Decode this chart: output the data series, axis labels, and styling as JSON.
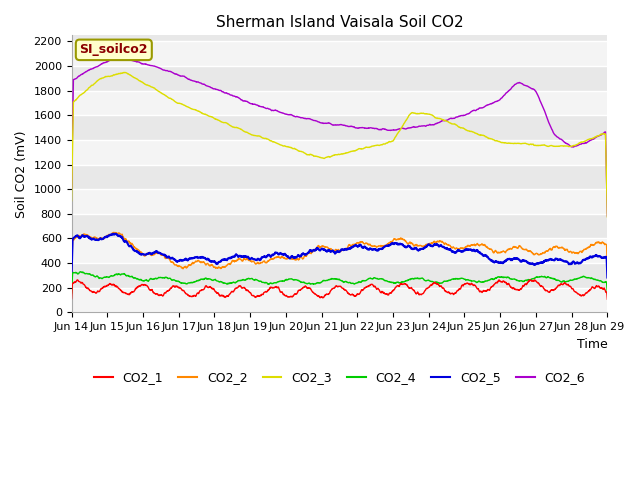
{
  "title": "Sherman Island Vaisala Soil CO2",
  "ylabel": "Soil CO2 (mV)",
  "xlabel": "Time",
  "annotation": "SI_soilco2",
  "xlim": [
    0,
    15
  ],
  "ylim": [
    0,
    2250
  ],
  "yticks": [
    0,
    200,
    400,
    600,
    800,
    1000,
    1200,
    1400,
    1600,
    1800,
    2000,
    2200
  ],
  "xtick_labels": [
    "Jun 14",
    "Jun 15",
    "Jun 16",
    "Jun 17",
    "Jun 18",
    "Jun 19",
    "Jun 20",
    "Jun 21",
    "Jun 22",
    "Jun 23",
    "Jun 24",
    "Jun 25",
    "Jun 26",
    "Jun 27",
    "Jun 28",
    "Jun 29"
  ],
  "colors": {
    "CO2_1": "#ff0000",
    "CO2_2": "#ff8800",
    "CO2_3": "#dddd00",
    "CO2_4": "#00cc00",
    "CO2_5": "#0000dd",
    "CO2_6": "#aa00cc"
  },
  "bg_color": "#ffffff",
  "plot_bg": "#e8e8e8",
  "stripe_color": "#d8d8d8",
  "title_fontsize": 11,
  "axis_fontsize": 9,
  "tick_fontsize": 8,
  "legend_fontsize": 9,
  "n_points": 2000
}
